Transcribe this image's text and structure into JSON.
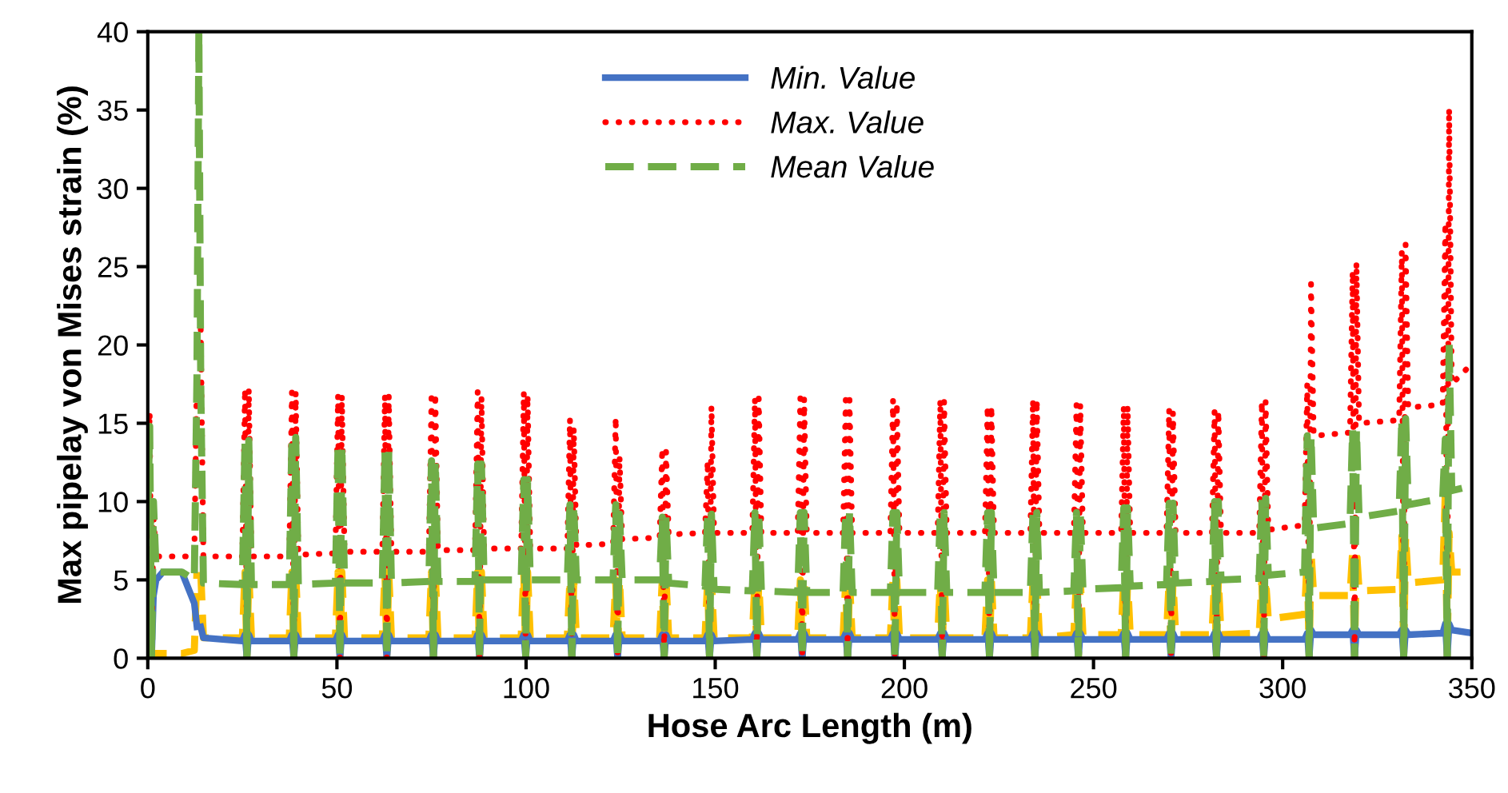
{
  "chart_data": {
    "type": "line",
    "xlabel": "Hose Arc Length (m)",
    "ylabel": "Max pipelay von Mises strain (%)",
    "xlim": [
      0,
      350
    ],
    "xticks": [
      0,
      50,
      100,
      150,
      200,
      250,
      300,
      350
    ],
    "ylim": [
      0,
      40
    ],
    "yticks": [
      0,
      5,
      10,
      15,
      20,
      25,
      30,
      35,
      40
    ],
    "grid": false,
    "legend": "top",
    "marker": "none",
    "x": [
      0,
      0.5,
      1,
      1.5,
      2.2,
      4,
      9,
      12.3,
      13,
      13.5,
      14,
      14.7,
      25,
      25.7,
      26.2,
      26.7,
      27.4,
      37.4,
      38.1,
      38.6,
      39.1,
      39.8,
      49.6,
      50.3,
      50.8,
      51.3,
      52,
      62,
      62.7,
      63.2,
      63.7,
      64.4,
      74.3,
      75,
      75.5,
      76,
      76.7,
      86.5,
      87.2,
      87.7,
      88.2,
      88.9,
      98.7,
      99.4,
      99.9,
      100.4,
      101.1,
      110.9,
      111.6,
      112.1,
      112.6,
      113.3,
      123,
      123.7,
      124.2,
      124.7,
      125.4,
      135.3,
      136,
      136.5,
      137,
      137.7,
      147.3,
      148,
      148.5,
      149,
      149.7,
      159.8,
      160.5,
      161,
      161.5,
      162.2,
      171.8,
      172.5,
      173,
      173.5,
      174.2,
      183.8,
      184.5,
      185,
      185.5,
      186.2,
      196.3,
      197,
      197.5,
      198,
      198.7,
      208.8,
      209.5,
      210,
      210.5,
      211.2,
      221.3,
      222,
      222.5,
      223,
      223.7,
      233.3,
      234,
      234.5,
      235,
      235.7,
      244.8,
      245.5,
      246,
      246.5,
      247.2,
      257.3,
      258,
      258.5,
      259,
      259.7,
      269.3,
      270,
      270.5,
      271,
      271.7,
      281.3,
      282,
      282.5,
      283,
      283.7,
      293.8,
      294.5,
      295,
      295.5,
      296.2,
      305.8,
      306.5,
      307,
      307.5,
      308.2,
      317.8,
      318.5,
      319,
      319.5,
      320.2,
      330.8,
      331.5,
      332,
      332.5,
      333.2,
      342.3,
      343,
      343.5,
      344,
      344.7,
      350
    ],
    "series": [
      {
        "color": "#ffc000",
        "line_style": "dashed",
        "values": [
          0,
          0.3,
          0,
          0.3,
          0.3,
          0.3,
          0.3,
          0.5,
          5.5,
          null,
          5.5,
          1.3,
          1.3,
          5.5,
          0,
          5.5,
          1.3,
          1.3,
          5.5,
          0,
          5.5,
          1.3,
          1.3,
          5.5,
          0,
          5.5,
          1.3,
          1.3,
          5.5,
          0,
          5.5,
          1.3,
          1.3,
          5.5,
          0,
          5.5,
          1.3,
          1.3,
          5.5,
          0,
          5.5,
          1.3,
          1.3,
          5.5,
          0,
          5.5,
          1.3,
          1.3,
          5,
          0,
          5,
          1.3,
          1.3,
          5,
          0,
          5,
          1.3,
          1.3,
          5,
          0,
          5,
          1.3,
          1.3,
          5,
          0,
          5,
          1.3,
          1.3,
          5,
          0,
          5,
          1.3,
          1.3,
          5,
          0,
          5,
          1.3,
          1.3,
          5,
          0,
          5,
          1.3,
          1.3,
          5,
          0,
          5,
          1.3,
          1.3,
          5,
          0,
          5,
          1.3,
          1.3,
          5,
          0,
          5,
          1.3,
          1.3,
          5,
          0,
          5,
          1.3,
          1.5,
          5,
          0,
          5,
          1.5,
          1.5,
          5,
          0,
          5,
          1.5,
          1.5,
          5,
          0,
          5,
          1.5,
          1.5,
          5,
          0,
          5,
          1.5,
          1.6,
          5,
          0,
          5,
          2.5,
          2.8,
          6.5,
          0,
          6.8,
          4,
          4,
          6.8,
          0,
          7,
          4.3,
          4.4,
          7.8,
          0,
          7.8,
          4.8,
          5,
          10.6,
          0,
          8,
          5.5,
          5.5
        ]
      },
      {
        "name": "Min. Value",
        "color": "#4472c4",
        "line_style": "solid",
        "values": [
          null,
          3,
          0,
          4,
          5,
          5.5,
          5.5,
          3.5,
          2,
          null,
          2,
          1.3,
          1.1,
          1.5,
          0,
          1.5,
          1.1,
          1.1,
          1.5,
          0,
          1.5,
          1.1,
          1.1,
          1.5,
          0,
          1.5,
          1.1,
          1.1,
          1.5,
          0,
          1.5,
          1.1,
          1.1,
          1.5,
          0,
          1.5,
          1.1,
          1.1,
          1.5,
          0,
          1.5,
          1.1,
          1.1,
          1.5,
          0,
          1.5,
          1.1,
          1.1,
          1.5,
          0,
          1.5,
          1.1,
          1.1,
          1.5,
          0,
          1.5,
          1.1,
          1.1,
          1.5,
          0,
          1.5,
          1.1,
          1.1,
          1.5,
          0,
          1.5,
          1.1,
          1.2,
          1.6,
          0,
          1.6,
          1.2,
          1.2,
          1.6,
          0,
          1.6,
          1.2,
          1.2,
          1.6,
          0,
          1.6,
          1.2,
          1.2,
          1.6,
          0,
          1.6,
          1.2,
          1.2,
          1.6,
          0,
          1.6,
          1.2,
          1.2,
          1.6,
          0,
          1.6,
          1.2,
          1.2,
          1.6,
          0,
          1.6,
          1.2,
          1.2,
          1.6,
          0,
          1.6,
          1.2,
          1.2,
          1.6,
          0,
          1.6,
          1.2,
          1.2,
          1.6,
          0,
          1.6,
          1.2,
          1.2,
          1.6,
          0,
          1.6,
          1.2,
          1.2,
          1.6,
          0,
          1.6,
          1.2,
          1.2,
          1.6,
          0,
          1.8,
          1.5,
          1.5,
          1.8,
          0,
          1.8,
          1.5,
          1.5,
          1.8,
          0,
          1.8,
          1.5,
          1.6,
          2.2,
          0,
          2.2,
          1.8,
          1.6
        ]
      },
      {
        "name": "Max. Value",
        "color": "#ff0000",
        "line_style": "dotted",
        "values": [
          10,
          15.7,
          0,
          9,
          6.5,
          6.5,
          6.5,
          6.5,
          18.5,
          null,
          21,
          6.5,
          6.5,
          17.2,
          0,
          17.2,
          6.5,
          6.5,
          17,
          0,
          17,
          6.6,
          6.7,
          16.8,
          0,
          16.8,
          6.8,
          6.8,
          16.8,
          0,
          16.8,
          6.8,
          6.8,
          16.6,
          0,
          16.9,
          6.9,
          6.9,
          17,
          0,
          16.7,
          7,
          7,
          17,
          0,
          16.8,
          7,
          7,
          15.3,
          0,
          14.7,
          7.2,
          7.3,
          15.4,
          0,
          12.9,
          7.6,
          7.7,
          13.4,
          0,
          13.2,
          7.9,
          8,
          12.6,
          0,
          16.1,
          8,
          8,
          16.6,
          0,
          16.6,
          8,
          8,
          16.6,
          0,
          16.6,
          8,
          8,
          16.5,
          0,
          16.5,
          8,
          8,
          16.5,
          0,
          16.3,
          8,
          8,
          16.5,
          0,
          16.4,
          8,
          8,
          16.1,
          0,
          16.1,
          8,
          8,
          16.5,
          0,
          16.5,
          8,
          8,
          16.2,
          0,
          16.2,
          8,
          8,
          16.1,
          0,
          16.1,
          8,
          8,
          15.9,
          0,
          15.7,
          8,
          8,
          15.8,
          0,
          15.8,
          8,
          8,
          16.4,
          0,
          16.4,
          8.2,
          8.5,
          17.5,
          0,
          23.9,
          14.2,
          14.4,
          24.7,
          0,
          25.3,
          15,
          15.2,
          26,
          0,
          26.4,
          16,
          16.2,
          27.8,
          0,
          35.1,
          17.5,
          18.8
        ]
      },
      {
        "name": "Mean Value",
        "color": "#70ad47",
        "line_style": "dashed",
        "values": [
          9,
          14.8,
          0,
          10,
          5.5,
          5.5,
          5.5,
          5,
          18,
          40,
          17.5,
          4.8,
          4.7,
          13.9,
          0,
          13.9,
          4.7,
          4.7,
          14.1,
          0,
          14.1,
          4.7,
          4.8,
          13.6,
          0,
          13.6,
          4.8,
          4.8,
          13.2,
          0,
          13.2,
          4.8,
          4.9,
          12.6,
          0,
          12.6,
          4.9,
          4.9,
          12.4,
          0,
          12.4,
          5,
          5,
          11.4,
          0,
          11.4,
          5,
          5,
          9.8,
          0,
          9.8,
          5,
          5,
          9.8,
          0,
          9.2,
          5,
          5,
          9,
          0,
          9,
          4.8,
          4.6,
          9.2,
          0,
          9.2,
          4.4,
          4.3,
          9.3,
          0,
          9.3,
          4.3,
          4.2,
          9.3,
          0,
          9.3,
          4.2,
          4.2,
          9.3,
          0,
          9.3,
          4.2,
          4.2,
          9.3,
          0,
          9.3,
          4.2,
          4.2,
          9.3,
          0,
          9.3,
          4.2,
          4.2,
          9.3,
          0,
          9.3,
          4.2,
          4.2,
          9.3,
          0,
          9.3,
          4.2,
          4.3,
          9.3,
          0,
          9.3,
          4.4,
          4.5,
          9.6,
          0,
          9.6,
          4.6,
          4.7,
          9.9,
          0,
          9.9,
          4.8,
          4.9,
          10,
          0,
          10,
          5,
          5.1,
          10.2,
          0,
          10.2,
          5.3,
          5.5,
          14.2,
          0,
          14.2,
          8.3,
          8.6,
          14.6,
          0,
          14.6,
          9,
          9.4,
          15.3,
          0,
          15.3,
          9.8,
          10.2,
          14,
          0,
          20.2,
          10.7,
          11
        ]
      }
    ]
  }
}
